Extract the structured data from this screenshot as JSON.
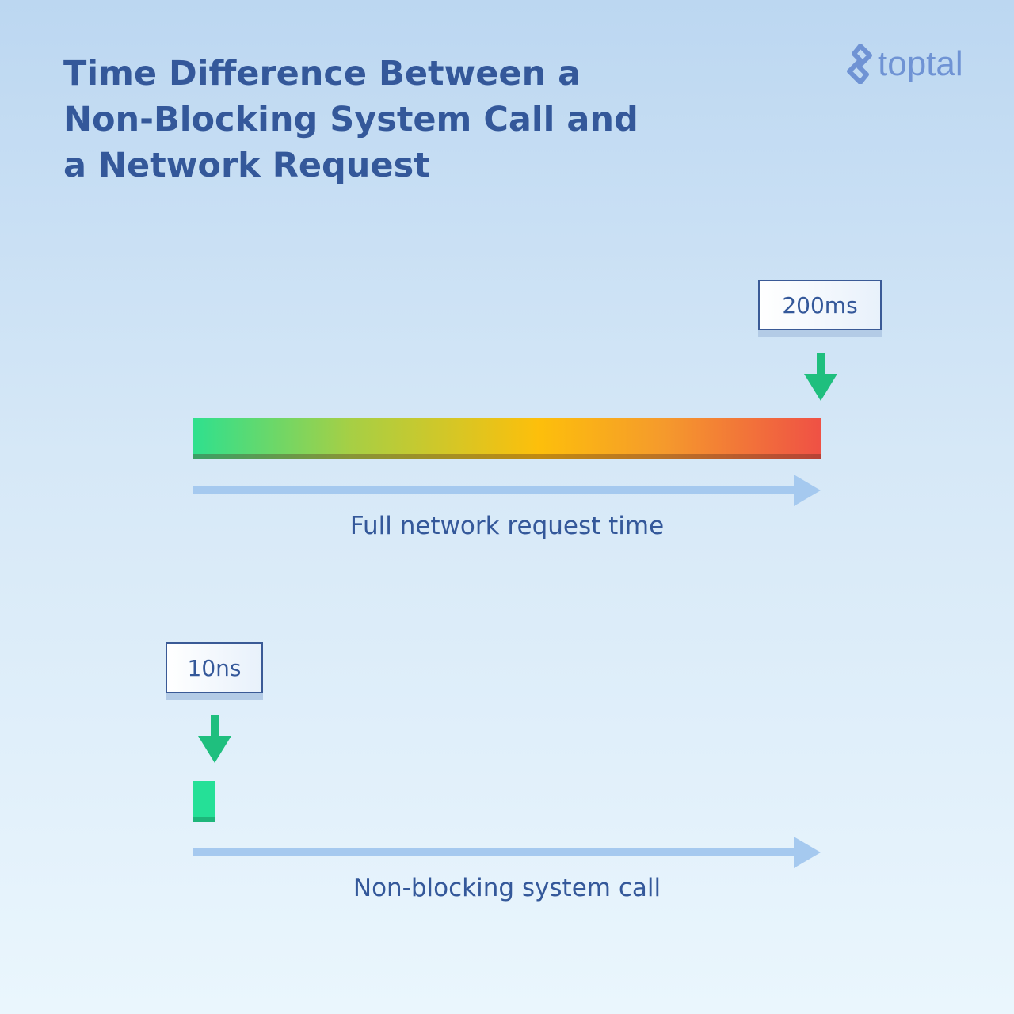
{
  "title": "Time Difference Between a Non-Blocking System Call and a Network Request",
  "logo": {
    "text": "toptal",
    "icon": "toptal-logo-icon",
    "color": "#6f93d4"
  },
  "network": {
    "label": "200ms",
    "caption": "Full network request time",
    "gradient": [
      "#2fe08e",
      "#fdbf0b",
      "#ef5145"
    ]
  },
  "syscall": {
    "label": "10ns",
    "caption": "Non-blocking system call",
    "color": "#25e097"
  },
  "colors": {
    "arrow": "#1fbf7e",
    "axis": "#a5c9ef",
    "text": "#34589a"
  }
}
